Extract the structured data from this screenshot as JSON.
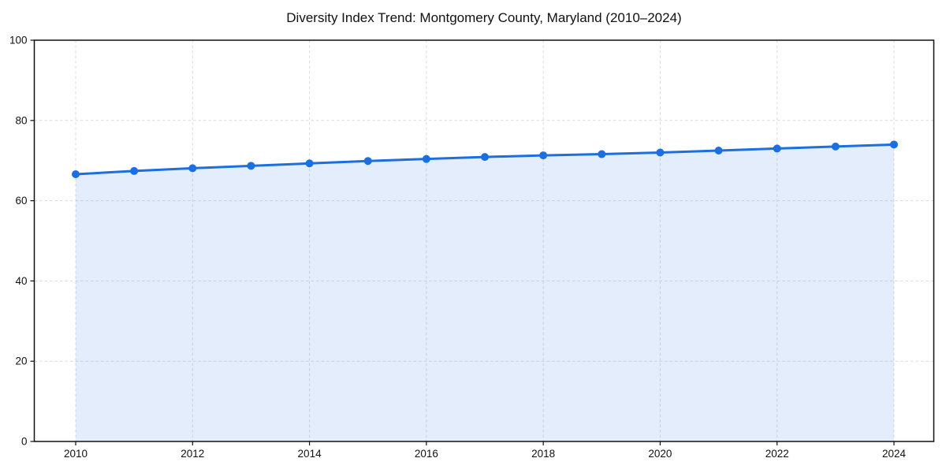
{
  "chart_data": {
    "type": "line",
    "title": "Diversity Index Trend: Montgomery County, Maryland (2010–2024)",
    "xlabel": "",
    "ylabel": "",
    "x": [
      2010,
      2011,
      2012,
      2013,
      2014,
      2015,
      2016,
      2017,
      2018,
      2019,
      2020,
      2021,
      2022,
      2023,
      2024
    ],
    "series": [
      {
        "name": "Diversity Index",
        "values": [
          66.6,
          67.4,
          68.1,
          68.7,
          69.3,
          69.9,
          70.4,
          70.9,
          71.3,
          71.6,
          72.0,
          72.5,
          73.0,
          73.5,
          74.0
        ]
      }
    ],
    "xticks": [
      2010,
      2012,
      2014,
      2016,
      2018,
      2020,
      2022,
      2024
    ],
    "yticks": [
      0,
      20,
      40,
      60,
      80,
      100
    ],
    "ylim": [
      0,
      100
    ],
    "grid": true,
    "grid_style": "dashed",
    "legend": "none",
    "area_fill": true,
    "marker": "circle",
    "colors": {
      "line": "#1b6fe0",
      "marker": "#1b6fe0",
      "fill": "rgba(27, 111, 224, 0.12)",
      "grid": "#dcdcdc",
      "axis": "#111111",
      "text": "#111111",
      "background": "#ffffff"
    }
  }
}
